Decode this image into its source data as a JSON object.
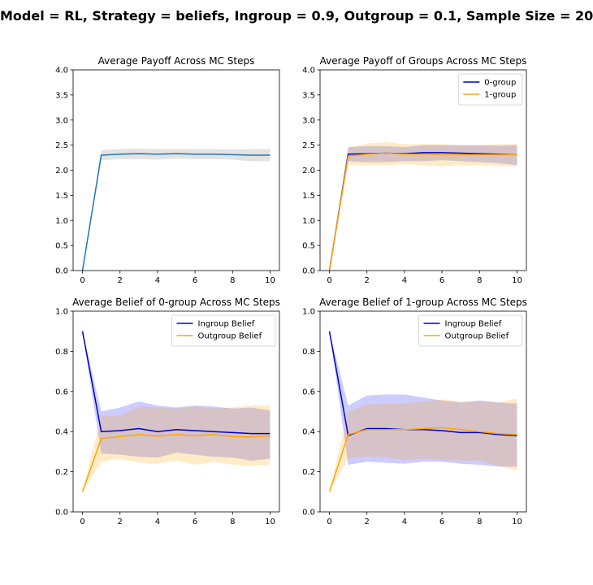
{
  "figure": {
    "suptitle": "Model = RL, Strategy = beliefs, Ingroup = 0.9, Outgroup = 0.1, Sample Size = 20"
  },
  "chart_data": [
    {
      "type": "line",
      "title": "Average Payoff Across MC Steps",
      "xlabel": "",
      "ylabel": "",
      "xlim": [
        -0.5,
        10.5
      ],
      "ylim": [
        0,
        4
      ],
      "xticks": [
        0,
        2,
        4,
        6,
        8,
        10
      ],
      "yticks": [
        0.0,
        0.5,
        1.0,
        1.5,
        2.0,
        2.5,
        3.0,
        3.5,
        4.0
      ],
      "ytick_decimals": 1,
      "legend": null,
      "x": [
        0,
        1,
        2,
        3,
        4,
        5,
        6,
        7,
        8,
        9,
        10
      ],
      "series": [
        {
          "color": "#1f77b4",
          "band_color": "#808080",
          "band_opacity": 0.22,
          "values": [
            0.0,
            2.3,
            2.32,
            2.33,
            2.32,
            2.33,
            2.32,
            2.32,
            2.31,
            2.3,
            2.3
          ],
          "lower": [
            0.0,
            2.2,
            2.22,
            2.22,
            2.21,
            2.23,
            2.22,
            2.22,
            2.21,
            2.18,
            2.18
          ],
          "upper": [
            0.0,
            2.4,
            2.42,
            2.43,
            2.42,
            2.42,
            2.42,
            2.42,
            2.41,
            2.42,
            2.42
          ]
        }
      ]
    },
    {
      "type": "line",
      "title": "Average Payoff of Groups Across MC Steps",
      "xlabel": "",
      "ylabel": "",
      "xlim": [
        -0.5,
        10.5
      ],
      "ylim": [
        0,
        4
      ],
      "xticks": [
        0,
        2,
        4,
        6,
        8,
        10
      ],
      "yticks": [
        0.0,
        0.5,
        1.0,
        1.5,
        2.0,
        2.5,
        3.0,
        3.5,
        4.0
      ],
      "ytick_decimals": 1,
      "legend": "top-right",
      "x": [
        0,
        1,
        2,
        3,
        4,
        5,
        6,
        7,
        8,
        9,
        10
      ],
      "series": [
        {
          "name": "0-group",
          "color": "#0000cc",
          "band_color": "#0000ff",
          "band_opacity": 0.2,
          "values": [
            0.0,
            2.32,
            2.33,
            2.34,
            2.33,
            2.35,
            2.35,
            2.34,
            2.33,
            2.32,
            2.31
          ],
          "lower": [
            0.0,
            2.18,
            2.16,
            2.16,
            2.18,
            2.18,
            2.2,
            2.18,
            2.16,
            2.14,
            2.1
          ],
          "upper": [
            0.0,
            2.46,
            2.48,
            2.48,
            2.46,
            2.5,
            2.5,
            2.5,
            2.5,
            2.49,
            2.5
          ]
        },
        {
          "name": "1-group",
          "color": "#ffa500",
          "band_color": "#ffa500",
          "band_opacity": 0.22,
          "values": [
            0.0,
            2.28,
            2.32,
            2.34,
            2.32,
            2.32,
            2.31,
            2.31,
            2.31,
            2.31,
            2.31
          ],
          "lower": [
            0.0,
            2.1,
            2.1,
            2.1,
            2.12,
            2.1,
            2.08,
            2.1,
            2.1,
            2.08,
            2.08
          ],
          "upper": [
            0.0,
            2.45,
            2.53,
            2.56,
            2.52,
            2.52,
            2.52,
            2.5,
            2.5,
            2.52,
            2.52
          ]
        }
      ]
    },
    {
      "type": "line",
      "title": "Average Belief of 0-group Across MC Steps",
      "xlabel": "",
      "ylabel": "",
      "xlim": [
        -0.5,
        10.5
      ],
      "ylim": [
        0,
        1
      ],
      "xticks": [
        0,
        2,
        4,
        6,
        8,
        10
      ],
      "yticks": [
        0.0,
        0.2,
        0.4,
        0.6,
        0.8,
        1.0
      ],
      "ytick_decimals": 1,
      "legend": "top-right",
      "x": [
        0,
        1,
        2,
        3,
        4,
        5,
        6,
        7,
        8,
        9,
        10
      ],
      "series": [
        {
          "name": "Ingroup Belief",
          "color": "#0000cc",
          "band_color": "#0000ff",
          "band_opacity": 0.2,
          "values": [
            0.9,
            0.4,
            0.405,
            0.415,
            0.4,
            0.41,
            0.405,
            0.4,
            0.395,
            0.39,
            0.39
          ],
          "lower": [
            0.9,
            0.29,
            0.285,
            0.275,
            0.27,
            0.295,
            0.285,
            0.275,
            0.27,
            0.255,
            0.265
          ],
          "upper": [
            0.9,
            0.5,
            0.52,
            0.55,
            0.53,
            0.52,
            0.53,
            0.525,
            0.515,
            0.52,
            0.505
          ]
        },
        {
          "name": "Outgroup Belief",
          "color": "#ffa500",
          "band_color": "#ffa500",
          "band_opacity": 0.22,
          "values": [
            0.1,
            0.365,
            0.375,
            0.385,
            0.378,
            0.385,
            0.38,
            0.385,
            0.375,
            0.373,
            0.378
          ],
          "lower": [
            0.1,
            0.25,
            0.265,
            0.245,
            0.24,
            0.255,
            0.235,
            0.25,
            0.235,
            0.23,
            0.235
          ],
          "upper": [
            0.1,
            0.48,
            0.48,
            0.525,
            0.52,
            0.515,
            0.525,
            0.515,
            0.52,
            0.53,
            0.53
          ]
        }
      ]
    },
    {
      "type": "line",
      "title": "Average Belief of 1-group Across MC Steps",
      "xlabel": "",
      "ylabel": "",
      "xlim": [
        -0.5,
        10.5
      ],
      "ylim": [
        0,
        1
      ],
      "xticks": [
        0,
        2,
        4,
        6,
        8,
        10
      ],
      "yticks": [
        0.0,
        0.2,
        0.4,
        0.6,
        0.8,
        1.0
      ],
      "ytick_decimals": 1,
      "legend": "top-right",
      "x": [
        0,
        1,
        2,
        3,
        4,
        5,
        6,
        7,
        8,
        9,
        10
      ],
      "series": [
        {
          "name": "Ingroup Belief",
          "color": "#0000cc",
          "band_color": "#0000ff",
          "band_opacity": 0.2,
          "values": [
            0.9,
            0.38,
            0.415,
            0.415,
            0.41,
            0.41,
            0.405,
            0.395,
            0.395,
            0.385,
            0.38
          ],
          "lower": [
            0.9,
            0.235,
            0.25,
            0.245,
            0.24,
            0.25,
            0.25,
            0.24,
            0.235,
            0.225,
            0.225
          ],
          "upper": [
            0.9,
            0.53,
            0.58,
            0.585,
            0.585,
            0.57,
            0.555,
            0.545,
            0.555,
            0.545,
            0.54
          ]
        },
        {
          "name": "Outgroup Belief",
          "color": "#ffa500",
          "band_color": "#ffa500",
          "band_opacity": 0.22,
          "values": [
            0.1,
            0.385,
            0.41,
            0.41,
            0.41,
            0.415,
            0.42,
            0.41,
            0.4,
            0.39,
            0.385
          ],
          "lower": [
            0.1,
            0.265,
            0.275,
            0.27,
            0.26,
            0.265,
            0.26,
            0.255,
            0.255,
            0.23,
            0.205
          ],
          "upper": [
            0.1,
            0.5,
            0.535,
            0.54,
            0.54,
            0.55,
            0.56,
            0.55,
            0.55,
            0.545,
            0.565
          ]
        }
      ]
    }
  ]
}
